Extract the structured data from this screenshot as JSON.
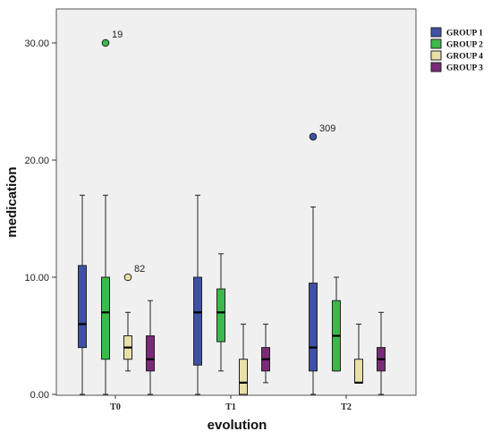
{
  "chart_data": {
    "type": "boxplot",
    "xlabel": "evolution",
    "ylabel": "medication",
    "ylim": [
      0,
      33
    ],
    "y_ticks": [
      0,
      10,
      20,
      30
    ],
    "y_tick_labels": [
      "0.00",
      "10.00",
      "20.00",
      "30.00"
    ],
    "grid": false,
    "legend_position": "top-right",
    "categories": [
      "T0",
      "T1",
      "T2"
    ],
    "series": [
      {
        "name": "GROUP 1",
        "color": "#3f51a6",
        "boxes": [
          {
            "whisker_low": 0,
            "q1": 4,
            "median": 6,
            "q3": 11,
            "whisker_high": 17,
            "outliers": []
          },
          {
            "whisker_low": 0,
            "q1": 2.5,
            "median": 7,
            "q3": 10,
            "whisker_high": 17,
            "outliers": []
          },
          {
            "whisker_low": 0,
            "q1": 2,
            "median": 4,
            "q3": 9.5,
            "whisker_high": 16,
            "outliers": [
              {
                "value": 22,
                "label": "309"
              }
            ]
          }
        ]
      },
      {
        "name": "GROUP 2",
        "color": "#3db84a",
        "boxes": [
          {
            "whisker_low": 0,
            "q1": 3,
            "median": 7,
            "q3": 10,
            "whisker_high": 17,
            "outliers": [
              {
                "value": 30,
                "label": "19"
              }
            ]
          },
          {
            "whisker_low": 2,
            "q1": 4.5,
            "median": 7,
            "q3": 9,
            "whisker_high": 12,
            "outliers": []
          },
          {
            "whisker_low": 2,
            "q1": 2,
            "median": 5,
            "q3": 8,
            "whisker_high": 10,
            "outliers": []
          }
        ]
      },
      {
        "name": "GROUP 4",
        "color": "#e8e0a8",
        "boxes": [
          {
            "whisker_low": 2,
            "q1": 3,
            "median": 4,
            "q3": 5,
            "whisker_high": 7,
            "outliers": [
              {
                "value": 10,
                "label": "82"
              }
            ]
          },
          {
            "whisker_low": 0,
            "q1": 0,
            "median": 1,
            "q3": 3,
            "whisker_high": 6,
            "outliers": []
          },
          {
            "whisker_low": 1,
            "q1": 1,
            "median": 1,
            "q3": 3,
            "whisker_high": 6,
            "outliers": []
          }
        ]
      },
      {
        "name": "GROUP 3",
        "color": "#7a2a78",
        "boxes": [
          {
            "whisker_low": 0,
            "q1": 2,
            "median": 3,
            "q3": 5,
            "whisker_high": 8,
            "outliers": []
          },
          {
            "whisker_low": 1,
            "q1": 2,
            "median": 3,
            "q3": 4,
            "whisker_high": 6,
            "outliers": []
          },
          {
            "whisker_low": 0,
            "q1": 2,
            "median": 3,
            "q3": 4,
            "whisker_high": 7,
            "outliers": []
          }
        ]
      }
    ],
    "colors": {
      "plot_background": "#f0f0f0",
      "outlier_group4": "#e8e0a8"
    }
  }
}
